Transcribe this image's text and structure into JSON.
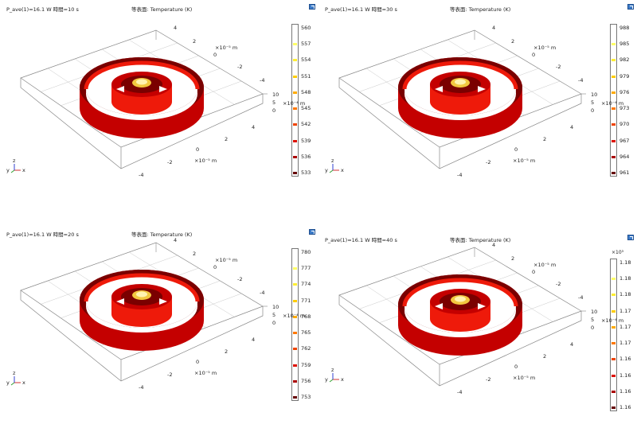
{
  "panels": [
    {
      "id": "tl",
      "header_left": "P_ave(1)=16.1 W 時間=10 s",
      "header_mid": "等表面: Temperature (K)",
      "colorbar": {
        "exponent": "",
        "labels": [
          "560",
          "557",
          "554",
          "551",
          "548",
          "545",
          "542",
          "539",
          "536",
          "533"
        ],
        "tick_colors": [
          "#ffffff",
          "#ffff66",
          "#ffee33",
          "#ffcc00",
          "#ffaa00",
          "#ff7700",
          "#ee4400",
          "#dd1100",
          "#aa0000",
          "#660000"
        ]
      },
      "axes": {
        "y_ticks": [
          "4",
          "2",
          "0",
          "-2",
          "-4"
        ],
        "x_ticks": [
          "4",
          "2",
          "0",
          "-2",
          "-4"
        ],
        "z_ticks": [
          "10",
          "5",
          "0"
        ],
        "y_unit": "×10⁻⁵ m",
        "x_unit": "×10⁻⁵ m",
        "z_unit": "×10⁻⁴ m"
      }
    },
    {
      "id": "tr",
      "header_left": "P_ave(1)=16.1 W 時間=30 s",
      "header_mid": "等表面: Temperature (K)",
      "colorbar": {
        "exponent": "",
        "labels": [
          "988",
          "985",
          "982",
          "979",
          "976",
          "973",
          "970",
          "967",
          "964",
          "961"
        ],
        "tick_colors": [
          "#ffffff",
          "#ffff66",
          "#ffee33",
          "#ffcc00",
          "#ffaa00",
          "#ff7700",
          "#ee4400",
          "#dd1100",
          "#aa0000",
          "#660000"
        ]
      },
      "axes": {
        "y_ticks": [
          "4",
          "2",
          "0",
          "-2",
          "-4"
        ],
        "x_ticks": [
          "4",
          "2",
          "0",
          "-2",
          "-4"
        ],
        "z_ticks": [
          "10",
          "5",
          "0"
        ],
        "y_unit": "×10⁻⁵ m",
        "x_unit": "×10⁻⁵ m",
        "z_unit": "×10⁻⁴ m"
      }
    },
    {
      "id": "bl",
      "header_left": "P_ave(1)=16.1 W 時間=20 s",
      "header_mid": "等表面: Temperature (K)",
      "colorbar": {
        "exponent": "",
        "labels": [
          "780",
          "777",
          "774",
          "771",
          "768",
          "765",
          "762",
          "759",
          "756",
          "753"
        ],
        "tick_colors": [
          "#ffffff",
          "#ffff66",
          "#ffee33",
          "#ffcc00",
          "#ffaa00",
          "#ff7700",
          "#ee4400",
          "#dd1100",
          "#aa0000",
          "#660000"
        ]
      },
      "axes": {
        "y_ticks": [
          "4",
          "2",
          "0",
          "-2",
          "-4"
        ],
        "x_ticks": [
          "4",
          "2",
          "0",
          "-2",
          "-4"
        ],
        "z_ticks": [
          "10",
          "5",
          "0"
        ],
        "y_unit": "×10⁻⁵ m",
        "x_unit": "×10⁻⁵ m",
        "z_unit": "×10⁻⁴ m"
      }
    },
    {
      "id": "br",
      "header_left": "P_ave(1)=16.1 W 時間=40 s",
      "header_mid": "等表面: Temperature (K)",
      "colorbar": {
        "exponent": "×10³",
        "labels": [
          "1.18",
          "1.18",
          "1.18",
          "1.17",
          "1.17",
          "1.17",
          "1.16",
          "1.16",
          "1.16",
          "1.16"
        ],
        "tick_colors": [
          "#ffffff",
          "#ffff66",
          "#ffee33",
          "#ffcc00",
          "#ffaa00",
          "#ff7700",
          "#ee4400",
          "#dd1100",
          "#aa0000",
          "#660000"
        ]
      },
      "axes": {
        "y_ticks": [
          "4",
          "2",
          "0",
          "-2",
          "-4"
        ],
        "x_ticks": [
          "4",
          "2",
          "0",
          "-2",
          "-4"
        ],
        "z_ticks": [
          "10",
          "5",
          "0"
        ],
        "y_unit": "×10⁻⁵ m",
        "x_unit": "×10⁻⁵ m",
        "z_unit": "×10⁻⁴ m"
      }
    }
  ],
  "triad": {
    "x": "x",
    "y": "y",
    "z": "z"
  },
  "colors": {
    "ring_dark": "#7a0000",
    "ring_mid": "#c40000",
    "ring_light": "#ee1a0a",
    "core": "#f2c840"
  }
}
